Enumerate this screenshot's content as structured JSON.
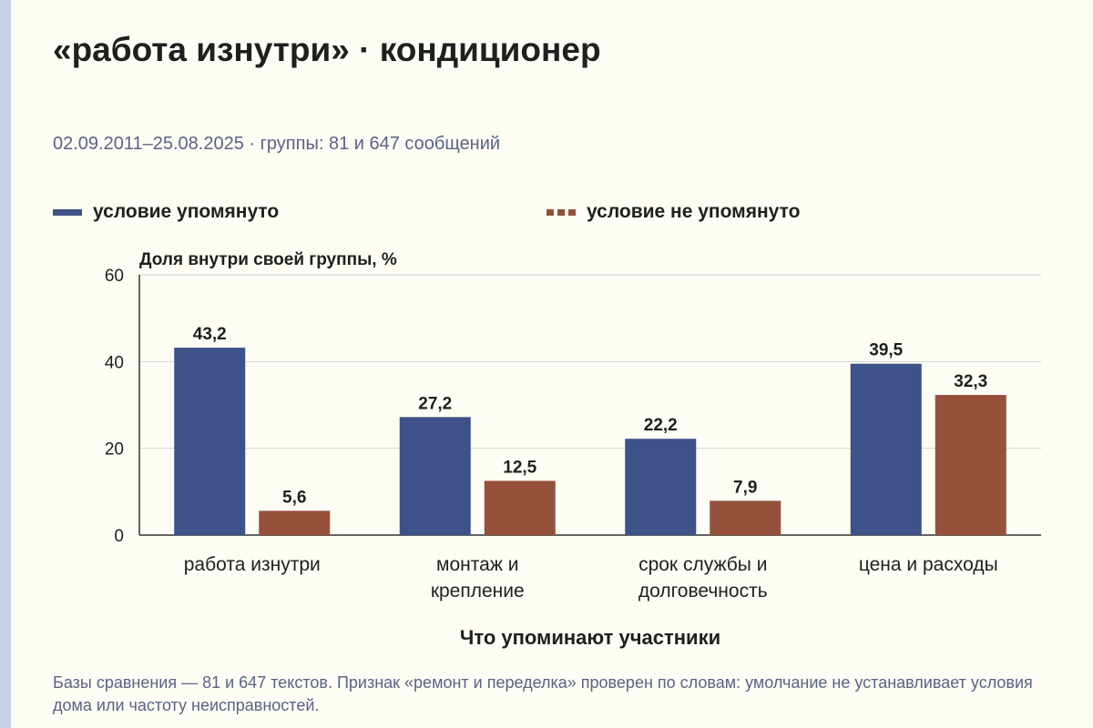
{
  "title": "«работа изнутри» · кондиционер",
  "subtitle": "02.09.2011–25.08.2025 · группы: 81 и 647 сообщений",
  "legend": [
    {
      "label": "условие упомянуто",
      "color": "#3d5289"
    },
    {
      "label": "условие не упомянуто",
      "color": "#95513a"
    }
  ],
  "chart_data": {
    "type": "bar",
    "ylabel": "Доля внутри своей группы, %",
    "xlabel": "Что упоминают участники",
    "ylim": [
      0,
      60
    ],
    "yticks": [
      0,
      20,
      40,
      60
    ],
    "grid": true,
    "legend_position": "top",
    "categories": [
      [
        "работа изнутри"
      ],
      [
        "монтаж и",
        "крепление"
      ],
      [
        "срок службы и",
        "долговечность"
      ],
      [
        "цена и расходы"
      ]
    ],
    "series": [
      {
        "name": "условие упомянуто",
        "color": "#3d5289",
        "values": [
          43.2,
          27.2,
          22.2,
          39.5
        ],
        "labels": [
          "43,2",
          "27,2",
          "22,2",
          "39,5"
        ]
      },
      {
        "name": "условие не упомянуто",
        "color": "#95513a",
        "values": [
          5.6,
          12.5,
          7.9,
          32.3
        ],
        "labels": [
          "5,6",
          "12,5",
          "7,9",
          "32,3"
        ]
      }
    ]
  },
  "footnote": "Базы сравнения — 81 и 647 текстов. Признак «ремонт и переделка» проверен по словам: умолчание не устанавливает условия дома или частоту неисправностей."
}
